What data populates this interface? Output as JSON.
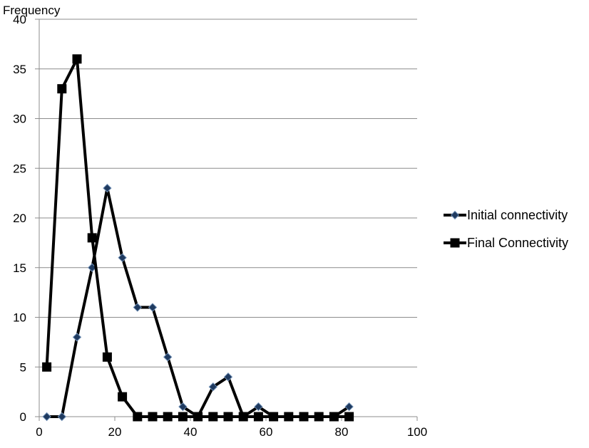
{
  "chart_data": {
    "type": "line",
    "title": "",
    "xlabel": "",
    "ylabel": "Frequency",
    "xlim": [
      0,
      100
    ],
    "ylim": [
      0,
      40
    ],
    "x_ticks": [
      0,
      20,
      40,
      60,
      80,
      100
    ],
    "y_ticks": [
      0,
      5,
      10,
      15,
      20,
      25,
      30,
      35,
      40
    ],
    "grid": "horizontal",
    "legend_position": "right",
    "x": [
      2,
      6,
      10,
      14,
      18,
      22,
      26,
      30,
      34,
      38,
      42,
      46,
      50,
      54,
      58,
      62,
      66,
      70,
      74,
      78,
      82
    ],
    "series": [
      {
        "name": "Initial connectivity",
        "marker": "diamond",
        "color": "#000000",
        "marker_fill": "#1f3a5f",
        "values": [
          0,
          0,
          8,
          15,
          23,
          16,
          11,
          11,
          6,
          1,
          0,
          3,
          4,
          0,
          1,
          0,
          0,
          0,
          0,
          0,
          1
        ]
      },
      {
        "name": "Final Connectivity",
        "marker": "square",
        "color": "#000000",
        "marker_fill": "#000000",
        "values": [
          5,
          33,
          36,
          18,
          6,
          2,
          0,
          0,
          0,
          0,
          0,
          0,
          0,
          0,
          0,
          0,
          0,
          0,
          0,
          0,
          0
        ]
      }
    ]
  }
}
